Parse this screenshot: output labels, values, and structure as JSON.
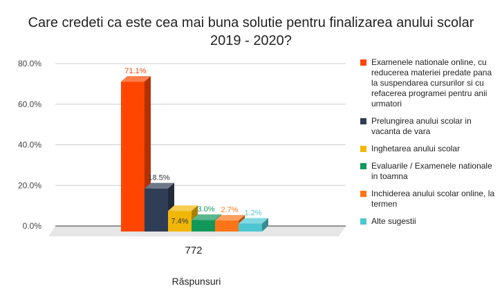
{
  "title_line1": "Care credeti ca este cea mai buna solutie pentru finalizarea anului scolar",
  "title_line2": "2019 - 2020?",
  "chart_data": {
    "type": "bar",
    "title": "Care credeti ca este cea mai buna solutie pentru finalizarea anului scolar 2019 - 2020?",
    "categories": [
      "772"
    ],
    "xlabel": "Răspunsuri",
    "ylabel": "",
    "ylim": [
      0,
      80
    ],
    "yticks": [
      "0.0%",
      "20.0%",
      "40.0%",
      "60.0%",
      "80.0%"
    ],
    "grid": true,
    "style": "3d",
    "legend_position": "right",
    "series": [
      {
        "name": "Examenele nationale online, cu reducerea materiei predate pana la suspendarea cursurilor si cu refacerea programei pentru anii urmatori",
        "values": [
          71.1
        ],
        "label": "71.1%",
        "color": "#ff4500",
        "label_color": "#ff4500"
      },
      {
        "name": "Prelungirea anului scolar in vacanta de vara",
        "values": [
          18.5
        ],
        "label": "18.5%",
        "color": "#2f3e55",
        "label_color": "#333333"
      },
      {
        "name": "Inghetarea anului scolar",
        "values": [
          7.4
        ],
        "label": "7.4%",
        "color": "#f2b705",
        "label_color": "#333333"
      },
      {
        "name": "Evaluarile / Examenele nationale in toamna",
        "values": [
          3.0
        ],
        "label": "3.0%",
        "color": "#12985a",
        "label_color": "#12985a"
      },
      {
        "name": "Inchiderea anului scolar online, la termen",
        "values": [
          2.7
        ],
        "label": "2.7%",
        "color": "#ff7417",
        "label_color": "#ff7417"
      },
      {
        "name": "Alte sugestii",
        "values": [
          1.2
        ],
        "label": "1.2%",
        "color": "#4ec6d2",
        "label_color": "#4ec6d2"
      }
    ]
  }
}
